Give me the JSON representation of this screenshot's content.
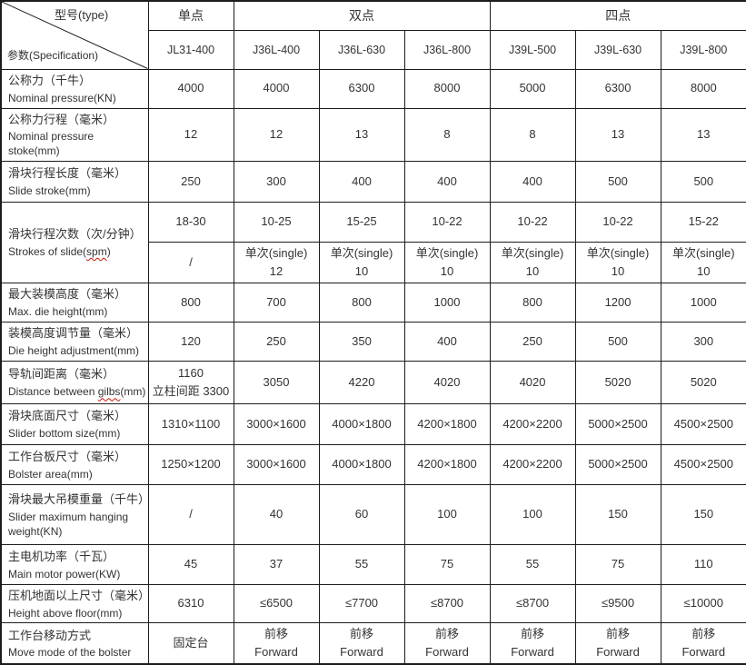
{
  "table": {
    "corner": {
      "type_label": "型号(type)",
      "spec_label": "参数(Specification)"
    },
    "groups": [
      {
        "label": "单点",
        "span": 1
      },
      {
        "label": "双点",
        "span": 3
      },
      {
        "label": "四点",
        "span": 3
      }
    ],
    "models": [
      "JL31-400",
      "J36L-400",
      "J36L-630",
      "J36L-800",
      "J39L-500",
      "J39L-630",
      "J39L-800"
    ],
    "rows": [
      {
        "label_zh": "公称力（千牛）",
        "label_en": "Nominal pressure(KN)",
        "values": [
          [
            "4000"
          ],
          [
            "4000"
          ],
          [
            "6300"
          ],
          [
            "8000"
          ],
          [
            "5000"
          ],
          [
            "6300"
          ],
          [
            "8000"
          ]
        ]
      },
      {
        "label_zh": "公称力行程（毫米）",
        "label_en": "Nominal pressure stoke(mm)",
        "values": [
          [
            "12"
          ],
          [
            "12"
          ],
          [
            "13"
          ],
          [
            "8"
          ],
          [
            "8"
          ],
          [
            "13"
          ],
          [
            "13"
          ]
        ]
      },
      {
        "label_zh": "滑块行程长度（毫米）",
        "label_en": "Slide stroke(mm)",
        "values": [
          [
            "250"
          ],
          [
            "300"
          ],
          [
            "400"
          ],
          [
            "400"
          ],
          [
            "400"
          ],
          [
            "500"
          ],
          [
            "500"
          ]
        ]
      },
      {
        "label_zh": "滑块行程次数（次/分钟）",
        "label_en": "Strokes of slide(spm)",
        "squiggle": "spm",
        "label_rowspan": 2,
        "values": [
          [
            "18-30"
          ],
          [
            "10-25"
          ],
          [
            "15-25"
          ],
          [
            "10-22"
          ],
          [
            "10-22"
          ],
          [
            "10-22"
          ],
          [
            "15-22"
          ]
        ]
      },
      {
        "label_zh": null,
        "label_en": null,
        "values": [
          [
            "/"
          ],
          [
            "单次(single)",
            "12"
          ],
          [
            "单次(single)",
            "10"
          ],
          [
            "单次(single)",
            "10"
          ],
          [
            "单次(single)",
            "10"
          ],
          [
            "单次(single)",
            "10"
          ],
          [
            "单次(single)",
            "10"
          ]
        ]
      },
      {
        "label_zh": "最大装模高度（毫米）",
        "label_en": "Max. die height(mm)",
        "values": [
          [
            "800"
          ],
          [
            "700"
          ],
          [
            "800"
          ],
          [
            "1000"
          ],
          [
            "800"
          ],
          [
            "1200"
          ],
          [
            "1000"
          ]
        ]
      },
      {
        "label_zh": "装模高度调节量（毫米）",
        "label_en": "Die height adjustment(mm)",
        "values": [
          [
            "120"
          ],
          [
            "250"
          ],
          [
            "350"
          ],
          [
            "400"
          ],
          [
            "250"
          ],
          [
            "500"
          ],
          [
            "300"
          ]
        ]
      },
      {
        "label_zh": "导轨间距离（毫米）",
        "label_en": "Distance between gilbs(mm)",
        "squiggle": "gilbs",
        "values": [
          [
            "1160",
            "立柱间距 3300"
          ],
          [
            "3050"
          ],
          [
            "4220"
          ],
          [
            "4020"
          ],
          [
            "4020"
          ],
          [
            "5020"
          ],
          [
            "5020"
          ]
        ]
      },
      {
        "label_zh": "滑块底面尺寸（毫米）",
        "label_en": "Slider bottom size(mm)",
        "values": [
          [
            "1310×1100"
          ],
          [
            "3000×1600"
          ],
          [
            "4000×1800"
          ],
          [
            "4200×1800"
          ],
          [
            "4200×2200"
          ],
          [
            "5000×2500"
          ],
          [
            "4500×2500"
          ]
        ]
      },
      {
        "label_zh": "工作台板尺寸（毫米）",
        "label_en": "Bolster area(mm)",
        "values": [
          [
            "1250×1200"
          ],
          [
            "3000×1600"
          ],
          [
            "4000×1800"
          ],
          [
            "4200×1800"
          ],
          [
            "4200×2200"
          ],
          [
            "5000×2500"
          ],
          [
            "4500×2500"
          ]
        ]
      },
      {
        "label_zh": "滑块最大吊模重量（千牛）",
        "label_en": "Slider maximum hanging weight(KN)",
        "values": [
          [
            "/"
          ],
          [
            "40"
          ],
          [
            "60"
          ],
          [
            "100"
          ],
          [
            "100"
          ],
          [
            "150"
          ],
          [
            "150"
          ]
        ]
      },
      {
        "label_zh": "主电机功率（千瓦）",
        "label_en": "Main motor power(KW)",
        "values": [
          [
            "45"
          ],
          [
            "37"
          ],
          [
            "55"
          ],
          [
            "75"
          ],
          [
            "55"
          ],
          [
            "75"
          ],
          [
            "110"
          ]
        ]
      },
      {
        "label_zh": "压机地面以上尺寸（毫米）",
        "label_en": "Height above floor(mm)",
        "values": [
          [
            "6310"
          ],
          [
            "≤6500"
          ],
          [
            "≤7700"
          ],
          [
            "≤8700"
          ],
          [
            "≤8700"
          ],
          [
            "≤9500"
          ],
          [
            "≤10000"
          ]
        ]
      },
      {
        "label_zh": "工作台移动方式",
        "label_en": "Move mode of the bolster",
        "values": [
          [
            "固定台"
          ],
          [
            "前移",
            "Forward"
          ],
          [
            "前移",
            "Forward"
          ],
          [
            "前移",
            "Forward"
          ],
          [
            "前移",
            "Forward"
          ],
          [
            "前移",
            "Forward"
          ],
          [
            "前移",
            "Forward"
          ]
        ]
      }
    ]
  }
}
